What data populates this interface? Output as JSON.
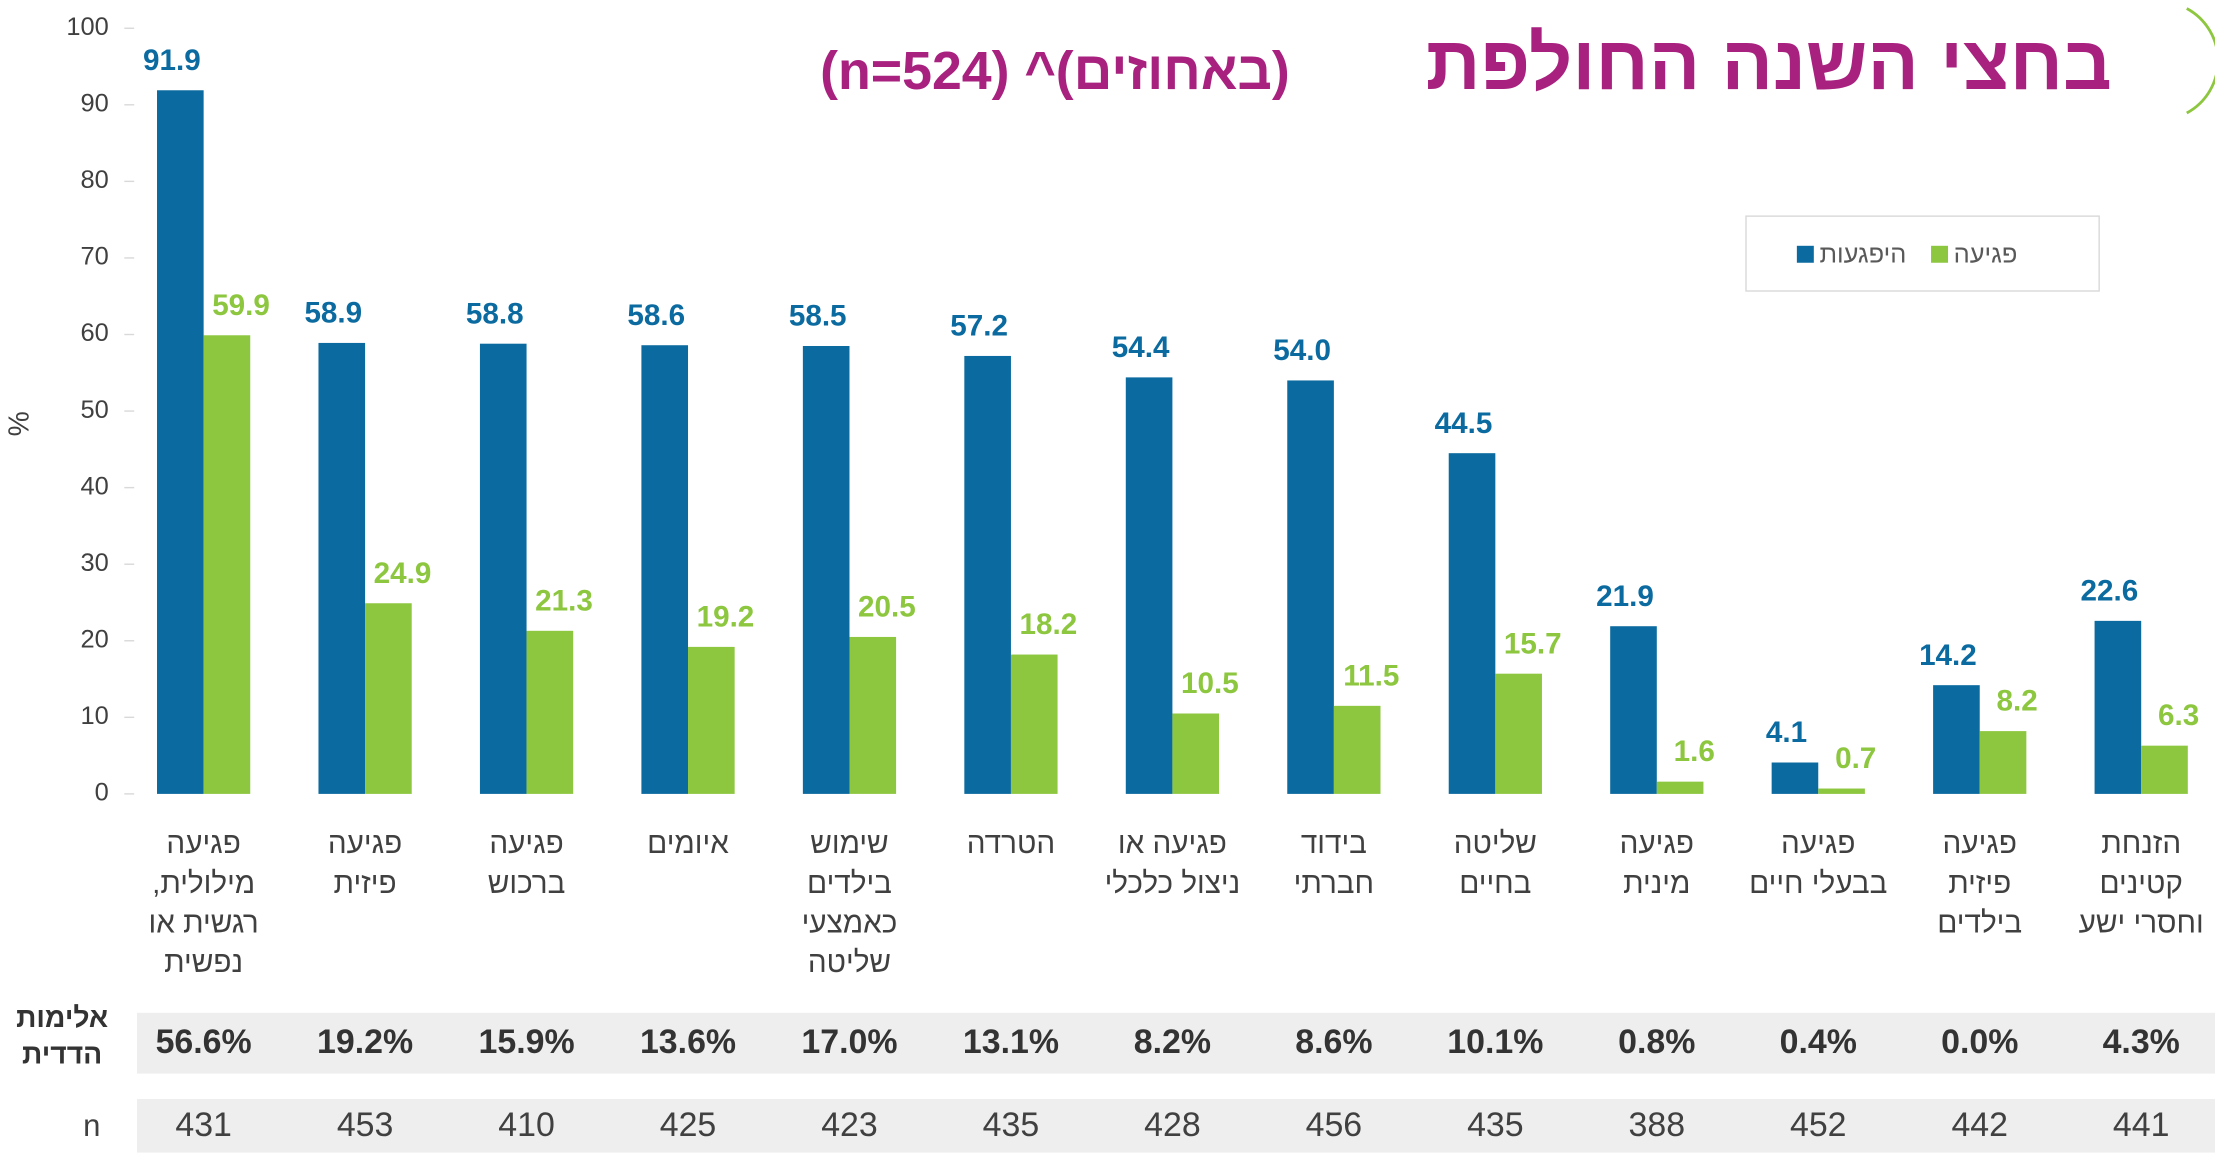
{
  "chart_data": {
    "type": "bar",
    "title": "בחצי השנה החולפת",
    "subtitle": "(באחוזים)^ (n=524)",
    "ylabel": "%",
    "categories": [
      "פגיעה\nמילולית,\nרגשית או\nנפשית",
      "פגיעה\nפיזית",
      "פגיעה\nברכוש",
      "איומים",
      "שימוש\nבילדים\nכאמצעי\nשליטה",
      "הטרדה",
      "פגיעה או\nניצול כלכלי",
      "בידוד\nחברתי",
      "שליטה\nבחיים",
      "פגיעה\nמינית",
      "פגיעה\nבבעלי חיים",
      "פגיעה\nפיזית\nבילדים",
      "הזנחת\nקטינים\nוחסרי ישע"
    ],
    "series": [
      {
        "name": "היפגעות",
        "color": "#0b6a9f",
        "values": [
          91.9,
          58.9,
          58.8,
          58.6,
          58.5,
          57.2,
          54.4,
          54.0,
          44.5,
          21.9,
          4.1,
          14.2,
          22.6
        ],
        "value_labels": [
          "91.9",
          "58.9",
          "58.8",
          "58.6",
          "58.5",
          "57.2",
          "54.4",
          "54.0",
          "44.5",
          "21.9",
          "4.1",
          "14.2",
          "22.6"
        ]
      },
      {
        "name": "פגיעה",
        "color": "#8dc63f",
        "values": [
          59.9,
          24.9,
          21.3,
          19.2,
          20.5,
          18.2,
          10.5,
          11.5,
          15.7,
          1.6,
          0.7,
          8.2,
          6.3
        ],
        "value_labels": [
          "59.9",
          "24.9",
          "21.3",
          "19.2",
          "20.5",
          "18.2",
          "10.5",
          "11.5",
          "15.7",
          "1.6",
          "0.7",
          "8.2",
          "6.3"
        ]
      }
    ],
    "ylim": [
      0,
      100
    ],
    "yticks": [
      0,
      10,
      20,
      30,
      40,
      50,
      60,
      70,
      80,
      90,
      100
    ],
    "legend": "upper right",
    "table": {
      "rows": [
        {
          "label": "אלימות\nהדדית",
          "values": [
            "56.6%",
            "19.2%",
            "15.9%",
            "13.6%",
            "17.0%",
            "13.1%",
            "8.2%",
            "8.6%",
            "10.1%",
            "0.8%",
            "0.4%",
            "0.0%",
            "4.3%"
          ]
        },
        {
          "label": "n",
          "values": [
            "431",
            "453",
            "410",
            "425",
            "423",
            "435",
            "428",
            "456",
            "435",
            "388",
            "452",
            "442",
            "441"
          ]
        }
      ]
    }
  }
}
